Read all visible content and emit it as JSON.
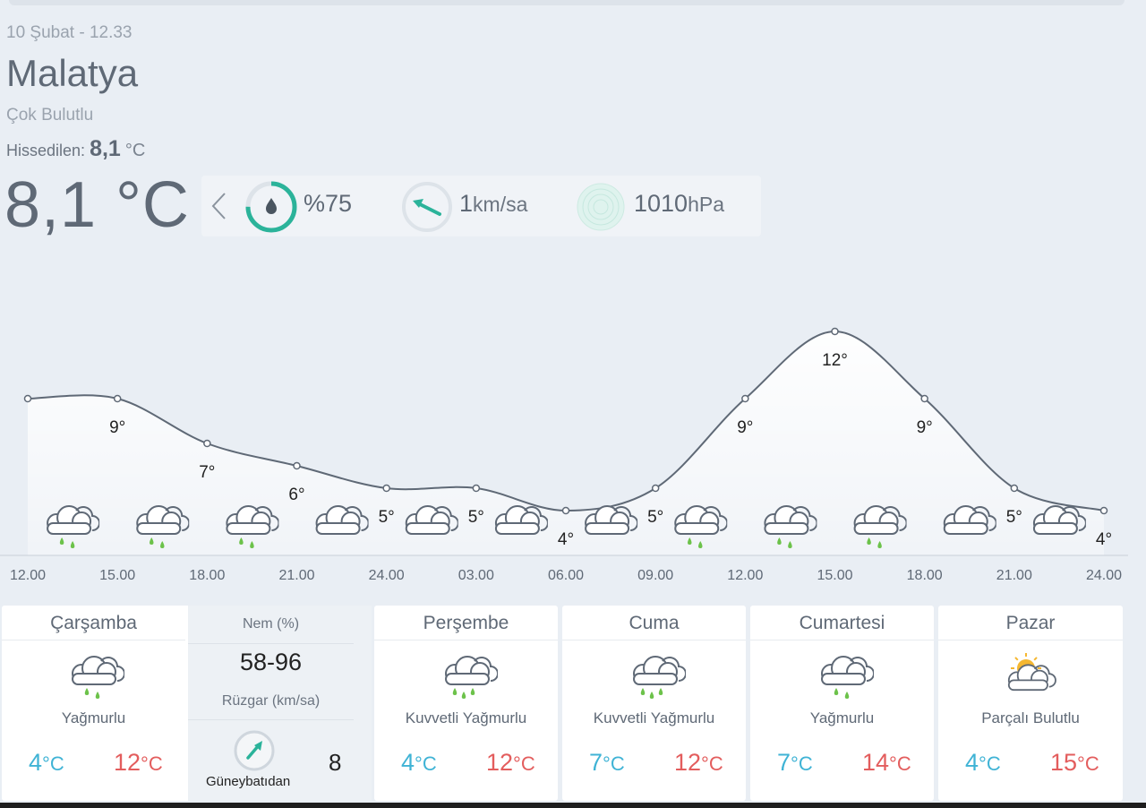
{
  "location": {
    "datetime": "10 Şubat - 12.33",
    "city": "Malatya",
    "condition": "Çok Bulutlu",
    "feels_label": "Hissedilen:",
    "feels_value": "8,1",
    "feels_unit": "°C",
    "temperature": "8,1 °C"
  },
  "stats": {
    "humidity": {
      "icon": "humidity-drop-icon",
      "value": "%75",
      "fraction": 0.75
    },
    "wind": {
      "icon": "wind-arrow-icon",
      "value": "1",
      "unit": "km/sa"
    },
    "pressure": {
      "icon": "pressure-gauge-icon",
      "value": "1010",
      "unit": "hPa"
    }
  },
  "colors": {
    "min_temp": "#3fb3d5",
    "max_temp": "#e35d5d",
    "humidity_ring": "#2bb39a",
    "rain_drop": "#6cc24a",
    "line": "#5f6976"
  },
  "chart_data": {
    "type": "line",
    "x": [
      "12.00",
      "15.00",
      "18.00",
      "21.00",
      "24.00",
      "03.00",
      "06.00",
      "09.00",
      "12.00",
      "15.00",
      "18.00",
      "21.00",
      "24.00"
    ],
    "values": [
      9,
      9,
      7,
      6,
      5,
      5,
      4,
      5,
      9,
      12,
      9,
      5,
      4
    ],
    "labels": [
      "",
      "9°",
      "7°",
      "6°",
      "5°",
      "5°",
      "4°",
      "5°",
      "9°",
      "12°",
      "9°",
      "5°",
      "4°"
    ],
    "icons": [
      "rain-cloud-icon",
      "rain-cloud-icon",
      "rain-cloud-icon",
      "cloud-icon",
      "cloud-icon",
      "cloud-icon",
      "cloud-icon",
      "rain-cloud-icon",
      "rain-cloud-icon",
      "rain-cloud-icon",
      "cloud-icon",
      "cloud-icon"
    ],
    "ylim": [
      2,
      14
    ],
    "grid": false
  },
  "forecast": [
    {
      "day": "Çarşamba",
      "icon": "rain-cloud-icon",
      "condition": "Yağmurlu",
      "min": "4",
      "max": "12",
      "unit": "°C"
    },
    {
      "day": "Perşembe",
      "icon": "heavy-rain-cloud-icon",
      "condition": "Kuvvetli Yağmurlu",
      "min": "4",
      "max": "12",
      "unit": "°C"
    },
    {
      "day": "Cuma",
      "icon": "heavy-rain-cloud-icon",
      "condition": "Kuvvetli Yağmurlu",
      "min": "7",
      "max": "12",
      "unit": "°C"
    },
    {
      "day": "Cumartesi",
      "icon": "rain-cloud-icon",
      "condition": "Yağmurlu",
      "min": "7",
      "max": "14",
      "unit": "°C"
    },
    {
      "day": "Pazar",
      "icon": "partly-cloudy-icon",
      "condition": "Parçalı Bulutlu",
      "min": "4",
      "max": "15",
      "unit": "°C"
    }
  ],
  "detail": {
    "humidity_label": "Nem (%)",
    "humidity_value": "58-96",
    "wind_label": "Rüzgar (km/sa)",
    "wind_direction": "Güneybatıdan",
    "wind_speed": "8"
  }
}
